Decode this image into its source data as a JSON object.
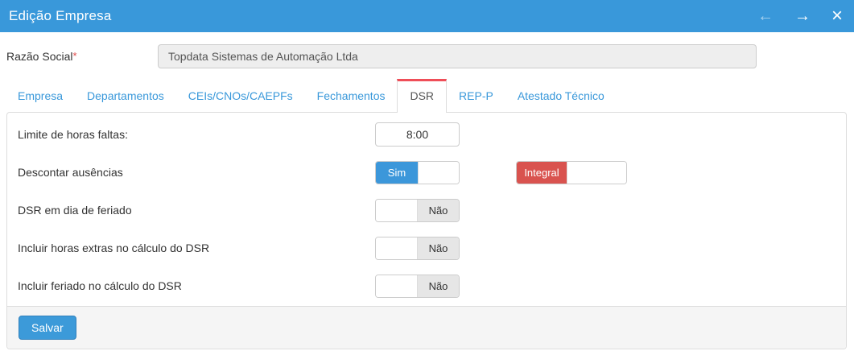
{
  "window": {
    "title": "Edição Empresa",
    "back_icon_glyph": "←",
    "forward_icon_glyph": "→",
    "close_icon_glyph": "×"
  },
  "form": {
    "razao_social_label": "Razão Social",
    "required_marker": "*",
    "razao_social_value": "Topdata Sistemas de Automação Ltda"
  },
  "tabs": {
    "items": [
      {
        "label": "Empresa",
        "active": false
      },
      {
        "label": "Departamentos",
        "active": false
      },
      {
        "label": "CEIs/CNOs/CAEPFs",
        "active": false
      },
      {
        "label": "Fechamentos",
        "active": false
      },
      {
        "label": "DSR",
        "active": true
      },
      {
        "label": "REP-P",
        "active": false
      },
      {
        "label": "Atestado Técnico",
        "active": false
      }
    ]
  },
  "panel": {
    "rows": [
      {
        "label": "Limite de horas faltas:",
        "value": "8:00"
      },
      {
        "label": "Descontar ausências",
        "toggle_primary": "Sim",
        "toggle_secondary": "Integral"
      },
      {
        "label": "DSR em dia de feriado",
        "toggle": "Não"
      },
      {
        "label": "Incluir horas extras no cálculo do DSR",
        "toggle": "Não"
      },
      {
        "label": "Incluir feriado no cálculo do DSR",
        "toggle": "Não"
      }
    ]
  },
  "footer": {
    "save_label": "Salvar"
  },
  "colors": {
    "header_blue": "#3998da",
    "toggle_blue": "#3c97da",
    "toggle_red": "#d9534f",
    "tab_accent_red": "#ef4e58",
    "save_button_blue": "#3c9ad9"
  }
}
